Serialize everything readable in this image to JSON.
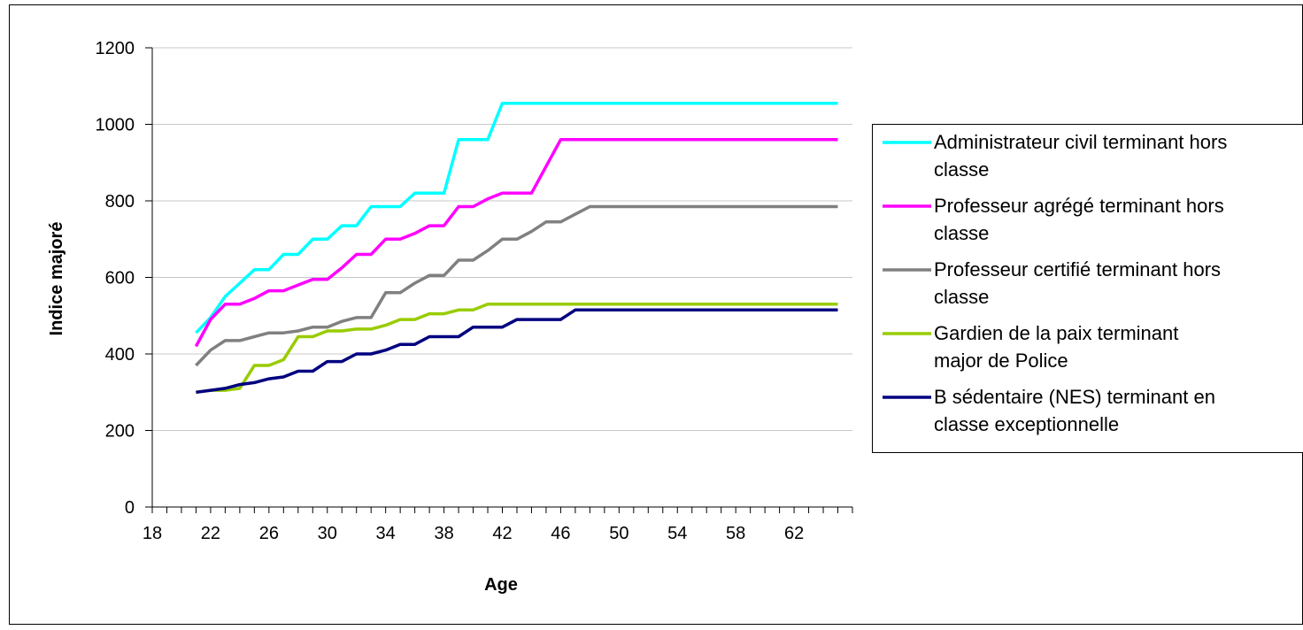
{
  "chart_data": {
    "type": "line",
    "title": "",
    "xlabel": "Age",
    "ylabel": "Indice majoré",
    "xlim": [
      18,
      66
    ],
    "ylim": [
      0,
      1200
    ],
    "y_ticks": [
      "0",
      "200",
      "400",
      "600",
      "800",
      "1000",
      "1200"
    ],
    "x_tick_labels": [
      "18",
      "22",
      "26",
      "30",
      "34",
      "38",
      "42",
      "46",
      "50",
      "54",
      "58",
      "62"
    ],
    "grid": "horizontal",
    "legend_position": "right",
    "series": [
      {
        "name": "Administrateur civil terminant hors classe",
        "color": "#00ffff",
        "x": [
          21,
          22,
          23,
          24,
          25,
          26,
          27,
          28,
          29,
          30,
          31,
          32,
          33,
          34,
          35,
          36,
          37,
          38,
          39,
          40,
          41,
          42,
          43,
          44,
          45,
          46,
          47,
          48,
          65
        ],
        "y": [
          455,
          495,
          550,
          585,
          620,
          620,
          660,
          660,
          700,
          700,
          735,
          735,
          785,
          785,
          785,
          820,
          820,
          820,
          960,
          960,
          960,
          1055,
          1055,
          1055,
          1055,
          1055,
          1055,
          1055,
          1055
        ]
      },
      {
        "name": "Professeur agrégé terminant hors classe",
        "color": "#ff00ff",
        "x": [
          21,
          22,
          23,
          24,
          25,
          26,
          27,
          28,
          29,
          30,
          31,
          32,
          33,
          34,
          35,
          36,
          37,
          38,
          39,
          40,
          41,
          42,
          43,
          44,
          45,
          46,
          47,
          48,
          65
        ],
        "y": [
          420,
          490,
          530,
          530,
          545,
          565,
          565,
          580,
          595,
          595,
          625,
          660,
          660,
          700,
          700,
          715,
          735,
          735,
          785,
          785,
          805,
          820,
          820,
          820,
          890,
          960,
          960,
          960,
          960
        ]
      },
      {
        "name": "Professeur certifié terminant hors classe",
        "color": "#808080",
        "x": [
          21,
          22,
          23,
          24,
          25,
          26,
          27,
          28,
          29,
          30,
          31,
          32,
          33,
          34,
          35,
          36,
          37,
          38,
          39,
          40,
          41,
          42,
          43,
          44,
          45,
          46,
          47,
          48,
          65
        ],
        "y": [
          370,
          410,
          435,
          435,
          445,
          455,
          455,
          460,
          470,
          470,
          485,
          495,
          495,
          560,
          560,
          585,
          605,
          605,
          645,
          645,
          670,
          700,
          700,
          720,
          745,
          745,
          765,
          785,
          785
        ]
      },
      {
        "name": "Gardien de la paix terminant major de Police",
        "color": "#99cc00",
        "x": [
          21,
          22,
          23,
          24,
          25,
          26,
          27,
          28,
          29,
          30,
          31,
          32,
          33,
          34,
          35,
          36,
          37,
          38,
          39,
          40,
          41,
          42,
          43,
          44,
          45,
          46,
          47,
          48,
          65
        ],
        "y": [
          300,
          305,
          305,
          310,
          370,
          370,
          385,
          445,
          445,
          460,
          460,
          465,
          465,
          475,
          490,
          490,
          505,
          505,
          515,
          515,
          530,
          530,
          530,
          530,
          530,
          530,
          530,
          530,
          530
        ]
      },
      {
        "name": "B sédentaire (NES) terminant en classe exceptionnelle",
        "color": "#000080",
        "x": [
          21,
          22,
          23,
          24,
          25,
          26,
          27,
          28,
          29,
          30,
          31,
          32,
          33,
          34,
          35,
          36,
          37,
          38,
          39,
          40,
          41,
          42,
          43,
          44,
          45,
          46,
          47,
          48,
          65
        ],
        "y": [
          300,
          305,
          310,
          320,
          325,
          335,
          340,
          355,
          355,
          380,
          380,
          400,
          400,
          410,
          425,
          425,
          445,
          445,
          445,
          470,
          470,
          470,
          490,
          490,
          490,
          490,
          515,
          515,
          515
        ]
      }
    ]
  }
}
